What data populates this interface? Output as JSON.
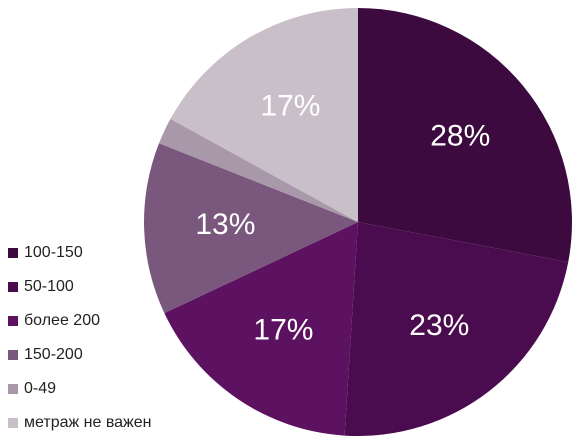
{
  "chart_data": {
    "type": "pie",
    "categories": [
      "100-150",
      "50-100",
      "более 200",
      "150-200",
      "0-49",
      "метраж не важен"
    ],
    "values": [
      28,
      23,
      17,
      13,
      2,
      17
    ],
    "value_labels": [
      "28%",
      "23%",
      "17%",
      "13%",
      null,
      "17%"
    ],
    "colors": [
      "#3c0a3f",
      "#4b0b4f",
      "#5c1260",
      "#7a587d",
      "#a898a9",
      "#c9bfc9"
    ]
  }
}
